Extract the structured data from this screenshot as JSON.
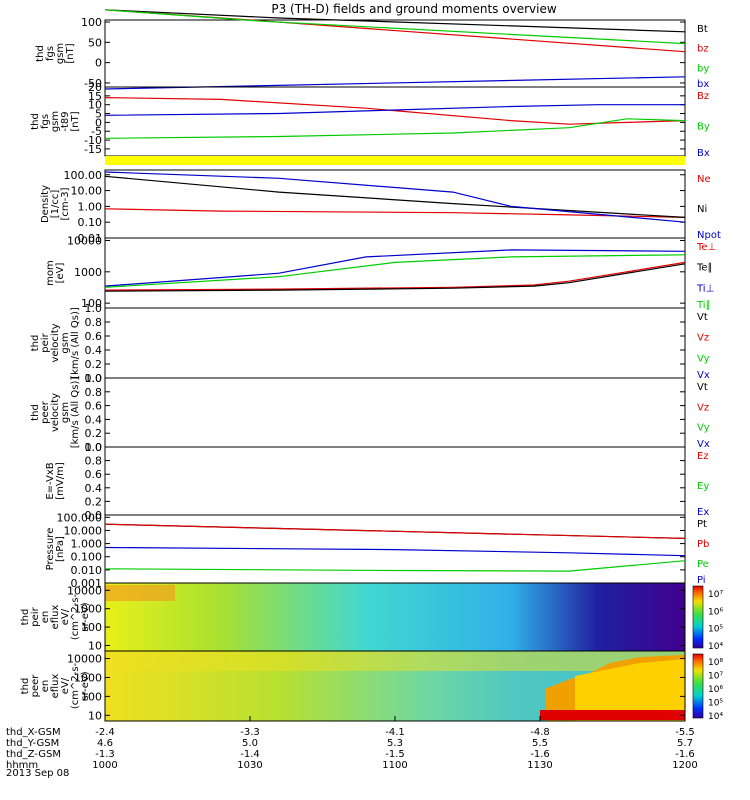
{
  "title": "P3 (TH-D) fields and ground moments overview",
  "footer": {
    "rows": [
      {
        "label": "thd_X-GSM",
        "values": [
          "-2.4",
          "-3.3",
          "-4.1",
          "-4.8",
          "-5.5"
        ]
      },
      {
        "label": "thd_Y-GSM",
        "values": [
          "4.6",
          "5.0",
          "5.3",
          "5.5",
          "5.7"
        ]
      },
      {
        "label": "thd_Z-GSM",
        "values": [
          "-1.3",
          "-1.4",
          "-1.5",
          "-1.6",
          "-1.6"
        ]
      },
      {
        "label": "hhmm",
        "values": [
          "1000",
          "1030",
          "1100",
          "1130",
          "1200"
        ]
      }
    ],
    "date": "2013 Sep 08"
  },
  "colors": {
    "black": "#000000",
    "red": "#e00000",
    "green": "#00cc00",
    "blue": "#0000cc",
    "yellow": "#ffff00"
  },
  "chart_data": [
    {
      "type": "line",
      "ylabel": [
        "thd",
        "fgs",
        "gsm",
        "[nT]"
      ],
      "ylim": [
        -60,
        105
      ],
      "yticks": [
        "100",
        "50",
        "0",
        "-50"
      ],
      "series": [
        {
          "name": "Bt",
          "color": "black",
          "x": [
            0,
            0.3,
            1
          ],
          "y": [
            130,
            110,
            76
          ]
        },
        {
          "name": "bz",
          "color": "red",
          "x": [
            0,
            0.25,
            1
          ],
          "y": [
            130,
            105,
            27
          ]
        },
        {
          "name": "by",
          "color": "green",
          "x": [
            0,
            0.27,
            1
          ],
          "y": [
            130,
            102,
            47
          ]
        },
        {
          "name": "bx",
          "color": "blue",
          "x": [
            0,
            1
          ],
          "y": [
            -65,
            -35
          ]
        }
      ]
    },
    {
      "type": "line",
      "ylabel": [
        "thd",
        "fgs",
        "gsm",
        "-t89",
        "[nT]"
      ],
      "ylim": [
        -19,
        20
      ],
      "yticks": [
        "20",
        "15",
        "10",
        "5",
        "0",
        "-5",
        "-10",
        "-15"
      ],
      "series": [
        {
          "name": "Bz",
          "color": "red",
          "x": [
            0,
            0.2,
            0.45,
            0.7,
            0.8,
            1
          ],
          "y": [
            14,
            13,
            8,
            1,
            -1,
            1
          ]
        },
        {
          "name": "By",
          "color": "green",
          "x": [
            0,
            0.3,
            0.6,
            0.8,
            0.9,
            1
          ],
          "y": [
            -9,
            -8,
            -6,
            -3,
            2,
            1
          ]
        },
        {
          "name": "Bx",
          "color": "blue",
          "x": [
            0,
            0.3,
            0.5,
            0.7,
            0.85,
            1
          ],
          "y": [
            4,
            5,
            7,
            9,
            10,
            10
          ]
        }
      ]
    },
    {
      "type": "line",
      "ylabel": [
        "Density",
        "[1/cc]",
        "[cm-3]"
      ],
      "yscale": "log",
      "ylim": [
        0.01,
        200
      ],
      "yticks": [
        "100.00",
        "10.00",
        "1.00",
        "0.10",
        "0.01"
      ],
      "series": [
        {
          "name": "Ne",
          "color": "red",
          "x": [
            0,
            0.2,
            0.6,
            0.78,
            1
          ],
          "y": [
            0.7,
            0.5,
            0.4,
            0.3,
            0.2
          ]
        },
        {
          "name": "Ni",
          "color": "black",
          "x": [
            0,
            0.3,
            0.6,
            1
          ],
          "y": [
            80,
            8,
            1.5,
            0.2
          ]
        },
        {
          "name": "Npot",
          "color": "blue",
          "x": [
            0,
            0.3,
            0.6,
            0.7,
            1
          ],
          "y": [
            150,
            60,
            8,
            1,
            0.1
          ]
        }
      ]
    },
    {
      "type": "line",
      "ylabel": [
        "mom",
        "[eV]"
      ],
      "yscale": "log",
      "ylim": [
        70,
        12000
      ],
      "yticks": [
        "10000",
        "1000",
        "100"
      ],
      "series": [
        {
          "name": "Te⊥",
          "color": "red",
          "x": [
            0,
            0.3,
            0.6,
            0.74,
            0.8,
            1
          ],
          "y": [
            260,
            280,
            320,
            380,
            500,
            2000
          ]
        },
        {
          "name": "Te∥",
          "color": "black",
          "x": [
            0,
            0.3,
            0.6,
            0.74,
            0.8,
            1
          ],
          "y": [
            240,
            260,
            300,
            350,
            450,
            1800
          ]
        },
        {
          "name": "Ti⊥",
          "color": "blue",
          "x": [
            0,
            0.3,
            0.45,
            0.7,
            1
          ],
          "y": [
            350,
            900,
            3000,
            5000,
            4500
          ]
        },
        {
          "name": "Ti∥",
          "color": "green",
          "x": [
            0,
            0.3,
            0.5,
            0.7,
            1
          ],
          "y": [
            320,
            700,
            2000,
            3000,
            3500
          ]
        }
      ]
    },
    {
      "type": "line",
      "ylabel": [
        "thd",
        "peir",
        "velocity",
        "gsm",
        "[km/s (All Qs)]"
      ],
      "ylim": [
        0,
        1
      ],
      "yticks": [
        "1.0",
        "0.8",
        "0.6",
        "0.4",
        "0.2",
        "0.0"
      ],
      "series": [
        {
          "name": "Vt",
          "color": "black",
          "x": [],
          "y": []
        },
        {
          "name": "Vz",
          "color": "red",
          "x": [],
          "y": []
        },
        {
          "name": "Vy",
          "color": "green",
          "x": [],
          "y": []
        },
        {
          "name": "Vx",
          "color": "blue",
          "x": [],
          "y": []
        }
      ]
    },
    {
      "type": "line",
      "ylabel": [
        "thd",
        "peer",
        "velocity",
        "gsm",
        "[km/s (All Qs)]"
      ],
      "ylim": [
        0,
        1
      ],
      "yticks": [
        "1.0",
        "0.8",
        "0.6",
        "0.4",
        "0.2",
        "0.0"
      ],
      "series": [
        {
          "name": "Vt",
          "color": "black",
          "x": [],
          "y": []
        },
        {
          "name": "Vz",
          "color": "red",
          "x": [],
          "y": []
        },
        {
          "name": "Vy",
          "color": "green",
          "x": [],
          "y": []
        },
        {
          "name": "Vx",
          "color": "blue",
          "x": [],
          "y": []
        }
      ]
    },
    {
      "type": "line",
      "ylabel": [
        "E=-VxB",
        "[mV/m]"
      ],
      "ylim": [
        0,
        1
      ],
      "yticks": [
        "1.0",
        "0.8",
        "0.6",
        "0.4",
        "0.2",
        "0.0"
      ],
      "series": [
        {
          "name": "Ez",
          "color": "red",
          "x": [],
          "y": []
        },
        {
          "name": "Ey",
          "color": "green",
          "x": [],
          "y": []
        },
        {
          "name": "Ex",
          "color": "blue",
          "x": [],
          "y": []
        }
      ]
    },
    {
      "type": "line",
      "ylabel": [
        "Pressure",
        "[nPa]"
      ],
      "yscale": "log",
      "ylim": [
        0.001,
        150
      ],
      "yticks": [
        "100.000",
        "10.000",
        "1.000",
        "0.100",
        "0.010",
        "0.001"
      ],
      "series": [
        {
          "name": "Pt",
          "color": "black",
          "x": [
            0,
            1
          ],
          "y": [
            30,
            2.5
          ]
        },
        {
          "name": "Pb",
          "color": "red",
          "x": [
            0,
            1
          ],
          "y": [
            30,
            2.5
          ]
        },
        {
          "name": "Pe",
          "color": "green",
          "x": [
            0,
            0.5,
            0.8,
            0.9,
            1
          ],
          "y": [
            0.012,
            0.009,
            0.008,
            0.02,
            0.05
          ]
        },
        {
          "name": "Pi",
          "color": "blue",
          "x": [
            0,
            0.5,
            0.8,
            1
          ],
          "y": [
            0.5,
            0.35,
            0.2,
            0.12
          ]
        }
      ]
    },
    {
      "type": "heatmap",
      "ylabel": [
        "thd",
        "peir",
        "en",
        "eflux",
        "eV/",
        "(cm^2-s-",
        "sr-eV)"
      ],
      "yscale": "log",
      "ylim": [
        5,
        25000
      ],
      "yticks": [
        "10000",
        "1000",
        "100",
        "10"
      ],
      "colorbar": {
        "ticks": [
          "10⁷",
          "10⁶",
          "10⁵",
          "10⁴"
        ]
      }
    },
    {
      "type": "heatmap",
      "ylabel": [
        "thd",
        "peer",
        "en",
        "eflux",
        "eV/",
        "(cm^2-s-",
        "sr-eV)"
      ],
      "yscale": "log",
      "ylim": [
        5,
        25000
      ],
      "yticks": [
        "10000",
        "1000",
        "100",
        "10"
      ],
      "colorbar": {
        "ticks": [
          "10⁸",
          "10⁷",
          "10⁶",
          "10⁵",
          "10⁴"
        ]
      }
    }
  ]
}
